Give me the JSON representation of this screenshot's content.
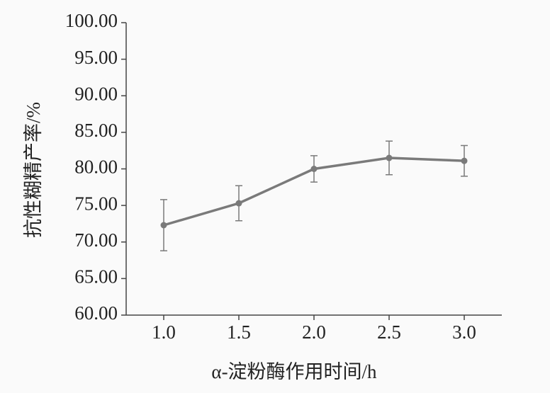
{
  "chart_data": {
    "type": "line",
    "x_label": "α-淀粉酶作用时间/h",
    "y_label": "抗性糊精产率/%",
    "x": [
      1.0,
      1.5,
      2.0,
      2.5,
      3.0
    ],
    "series": [
      {
        "color": "#7a7a7a",
        "values": [
          72.3,
          75.3,
          80.0,
          81.5,
          81.1
        ],
        "errors": [
          3.5,
          2.4,
          1.8,
          2.3,
          2.1
        ]
      }
    ],
    "xlim": [
      0.75,
      3.25
    ],
    "xticks": [
      {
        "value": 1,
        "label": "1.0"
      },
      {
        "value": 1.5,
        "label": "1.5"
      },
      {
        "value": 2,
        "label": "2.0"
      },
      {
        "value": 2.5,
        "label": "2.5"
      },
      {
        "value": 3,
        "label": "3.0"
      }
    ],
    "ylim": [
      60,
      100
    ],
    "yticks": [
      {
        "value": 60,
        "label": "60.00"
      },
      {
        "value": 65,
        "label": "65.00"
      },
      {
        "value": 70,
        "label": "70.00"
      },
      {
        "value": 75,
        "label": "75.00"
      },
      {
        "value": 80,
        "label": "80.00"
      },
      {
        "value": 85,
        "label": "85.00"
      },
      {
        "value": 90,
        "label": "90.00"
      },
      {
        "value": 95,
        "label": "95.00"
      },
      {
        "value": 100,
        "label": "100.00"
      }
    ]
  }
}
